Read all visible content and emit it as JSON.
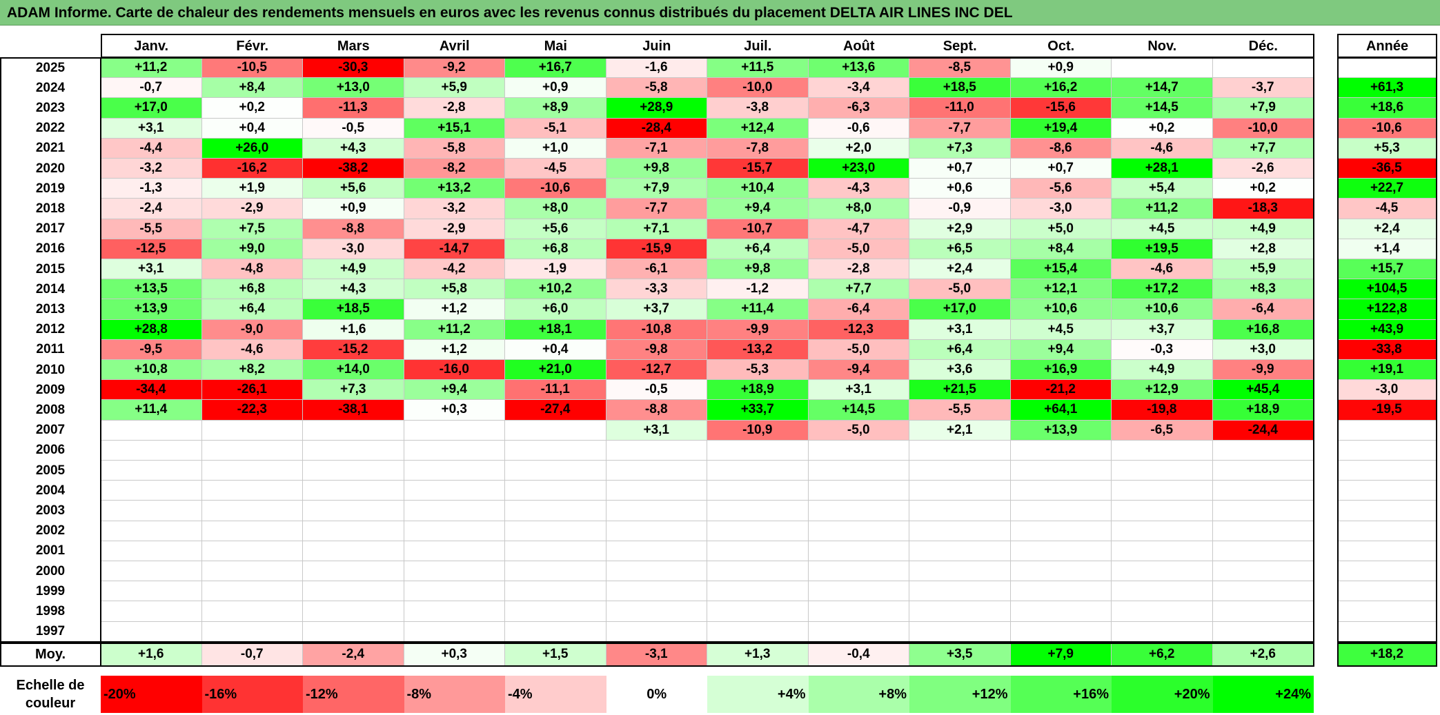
{
  "title": "ADAM Informe. Carte de chaleur des rendements mensuels en euros avec les revenus connus distribués du placement DELTA AIR LINES INC DEL",
  "chart_data": {
    "type": "heatmap",
    "title": "ADAM Informe. Carte de chaleur des rendements mensuels en euros avec les revenus connus distribués du placement DELTA AIR LINES INC DEL",
    "months": [
      "Janv.",
      "Févr.",
      "Mars",
      "Avril",
      "Mai",
      "Juin",
      "Juil.",
      "Août",
      "Sept.",
      "Oct.",
      "Nov.",
      "Déc."
    ],
    "year_header": "Année",
    "years": [
      "2025",
      "2024",
      "2023",
      "2022",
      "2021",
      "2020",
      "2019",
      "2018",
      "2017",
      "2016",
      "2015",
      "2014",
      "2013",
      "2012",
      "2011",
      "2010",
      "2009",
      "2008",
      "2007",
      "2006",
      "2005",
      "2004",
      "2003",
      "2002",
      "2001",
      "2000",
      "1999",
      "1998",
      "1997"
    ],
    "values": [
      [
        "+11,2",
        "-10,5",
        "-30,3",
        "-9,2",
        "+16,7",
        "-1,6",
        "+11,5",
        "+13,6",
        "-8,5",
        "+0,9",
        "",
        ""
      ],
      [
        "-0,7",
        "+8,4",
        "+13,0",
        "+5,9",
        "+0,9",
        "-5,8",
        "-10,0",
        "-3,4",
        "+18,5",
        "+16,2",
        "+14,7",
        "-3,7"
      ],
      [
        "+17,0",
        "+0,2",
        "-11,3",
        "-2,8",
        "+8,9",
        "+28,9",
        "-3,8",
        "-6,3",
        "-11,0",
        "-15,6",
        "+14,5",
        "+7,9"
      ],
      [
        "+3,1",
        "+0,4",
        "-0,5",
        "+15,1",
        "-5,1",
        "-28,4",
        "+12,4",
        "-0,6",
        "-7,7",
        "+19,4",
        "+0,2",
        "-10,0"
      ],
      [
        "-4,4",
        "+26,0",
        "+4,3",
        "-5,8",
        "+1,0",
        "-7,1",
        "-7,8",
        "+2,0",
        "+7,3",
        "-8,6",
        "-4,6",
        "+7,7"
      ],
      [
        "-3,2",
        "-16,2",
        "-38,2",
        "-8,2",
        "-4,5",
        "+9,8",
        "-15,7",
        "+23,0",
        "+0,7",
        "+0,7",
        "+28,1",
        "-2,6"
      ],
      [
        "-1,3",
        "+1,9",
        "+5,6",
        "+13,2",
        "-10,6",
        "+7,9",
        "+10,4",
        "-4,3",
        "+0,6",
        "-5,6",
        "+5,4",
        "+0,2"
      ],
      [
        "-2,4",
        "-2,9",
        "+0,9",
        "-3,2",
        "+8,0",
        "-7,7",
        "+9,4",
        "+8,0",
        "-0,9",
        "-3,0",
        "+11,2",
        "-18,3"
      ],
      [
        "-5,5",
        "+7,5",
        "-8,8",
        "-2,9",
        "+5,6",
        "+7,1",
        "-10,7",
        "-4,7",
        "+2,9",
        "+5,0",
        "+4,5",
        "+4,9"
      ],
      [
        "-12,5",
        "+9,0",
        "-3,0",
        "-14,7",
        "+6,8",
        "-15,9",
        "+6,4",
        "-5,0",
        "+6,5",
        "+8,4",
        "+19,5",
        "+2,8"
      ],
      [
        "+3,1",
        "-4,8",
        "+4,9",
        "-4,2",
        "-1,9",
        "-6,1",
        "+9,8",
        "-2,8",
        "+2,4",
        "+15,4",
        "-4,6",
        "+5,9"
      ],
      [
        "+13,5",
        "+6,8",
        "+4,3",
        "+5,8",
        "+10,2",
        "-3,3",
        "-1,2",
        "+7,7",
        "-5,0",
        "+12,1",
        "+17,2",
        "+8,3"
      ],
      [
        "+13,9",
        "+6,4",
        "+18,5",
        "+1,2",
        "+6,0",
        "+3,7",
        "+11,4",
        "-6,4",
        "+17,0",
        "+10,6",
        "+10,6",
        "-6,4"
      ],
      [
        "+28,8",
        "-9,0",
        "+1,6",
        "+11,2",
        "+18,1",
        "-10,8",
        "-9,9",
        "-12,3",
        "+3,1",
        "+4,5",
        "+3,7",
        "+16,8"
      ],
      [
        "-9,5",
        "-4,6",
        "-15,2",
        "+1,2",
        "+0,4",
        "-9,8",
        "-13,2",
        "-5,0",
        "+6,4",
        "+9,4",
        "-0,3",
        "+3,0"
      ],
      [
        "+10,8",
        "+8,2",
        "+14,0",
        "-16,0",
        "+21,0",
        "-12,7",
        "-5,3",
        "-9,4",
        "+3,6",
        "+16,9",
        "+4,9",
        "-9,9"
      ],
      [
        "-34,4",
        "-26,1",
        "+7,3",
        "+9,4",
        "-11,1",
        "-0,5",
        "+18,9",
        "+3,1",
        "+21,5",
        "-21,2",
        "+12,9",
        "+45,4"
      ],
      [
        "+11,4",
        "-22,3",
        "-38,1",
        "+0,3",
        "-27,4",
        "-8,8",
        "+33,7",
        "+14,5",
        "-5,5",
        "+64,1",
        "-19,8",
        "+18,9"
      ],
      [
        "",
        "",
        "",
        "",
        "",
        "+3,1",
        "-10,9",
        "-5,0",
        "+2,1",
        "+13,9",
        "-6,5",
        "-24,4"
      ],
      [
        "",
        "",
        "",
        "",
        "",
        "",
        "",
        "",
        "",
        "",
        "",
        ""
      ],
      [
        "",
        "",
        "",
        "",
        "",
        "",
        "",
        "",
        "",
        "",
        "",
        ""
      ],
      [
        "",
        "",
        "",
        "",
        "",
        "",
        "",
        "",
        "",
        "",
        "",
        ""
      ],
      [
        "",
        "",
        "",
        "",
        "",
        "",
        "",
        "",
        "",
        "",
        "",
        ""
      ],
      [
        "",
        "",
        "",
        "",
        "",
        "",
        "",
        "",
        "",
        "",
        "",
        ""
      ],
      [
        "",
        "",
        "",
        "",
        "",
        "",
        "",
        "",
        "",
        "",
        "",
        ""
      ],
      [
        "",
        "",
        "",
        "",
        "",
        "",
        "",
        "",
        "",
        "",
        "",
        ""
      ],
      [
        "",
        "",
        "",
        "",
        "",
        "",
        "",
        "",
        "",
        "",
        "",
        ""
      ],
      [
        "",
        "",
        "",
        "",
        "",
        "",
        "",
        "",
        "",
        "",
        "",
        ""
      ],
      [
        "",
        "",
        "",
        "",
        "",
        "",
        "",
        "",
        "",
        "",
        "",
        ""
      ]
    ],
    "annual": [
      "",
      "+61,3",
      "+18,6",
      "-10,6",
      "+5,3",
      "-36,5",
      "+22,7",
      "-4,5",
      "+2,4",
      "+1,4",
      "+15,7",
      "+104,5",
      "+122,8",
      "+43,9",
      "-33,8",
      "+19,1",
      "-3,0",
      "-19,5",
      "",
      "",
      "",
      "",
      "",
      "",
      "",
      "",
      "",
      "",
      ""
    ],
    "avg_label": "Moy.",
    "averages": [
      "+1,6",
      "-0,7",
      "-2,4",
      "+0,3",
      "+1,5",
      "-3,1",
      "+1,3",
      "-0,4",
      "+3,5",
      "+7,9",
      "+6,2",
      "+2,6"
    ],
    "avg_annual": "+18,2",
    "scale_label": [
      "Echelle de",
      "couleur"
    ],
    "scale": [
      {
        "label": "-20%",
        "value": -20,
        "color": "#ff0000"
      },
      {
        "label": "-16%",
        "value": -16,
        "color": "#ff3333"
      },
      {
        "label": "-12%",
        "value": -12,
        "color": "#ff6666"
      },
      {
        "label": "-8%",
        "value": -8,
        "color": "#ff9999"
      },
      {
        "label": "-4%",
        "value": -4,
        "color": "#ffcccc"
      },
      {
        "label": "0%",
        "value": 0,
        "color": "#ffffff"
      },
      {
        "label": "+4%",
        "value": 4,
        "color": "#d5ffd5"
      },
      {
        "label": "+8%",
        "value": 8,
        "color": "#aaffaa"
      },
      {
        "label": "+12%",
        "value": 12,
        "color": "#80ff80"
      },
      {
        "label": "+16%",
        "value": 16,
        "color": "#55ff55"
      },
      {
        "label": "+20%",
        "value": 20,
        "color": "#2bff2b"
      },
      {
        "label": "+24%",
        "value": 24,
        "color": "#00ff00"
      }
    ]
  }
}
